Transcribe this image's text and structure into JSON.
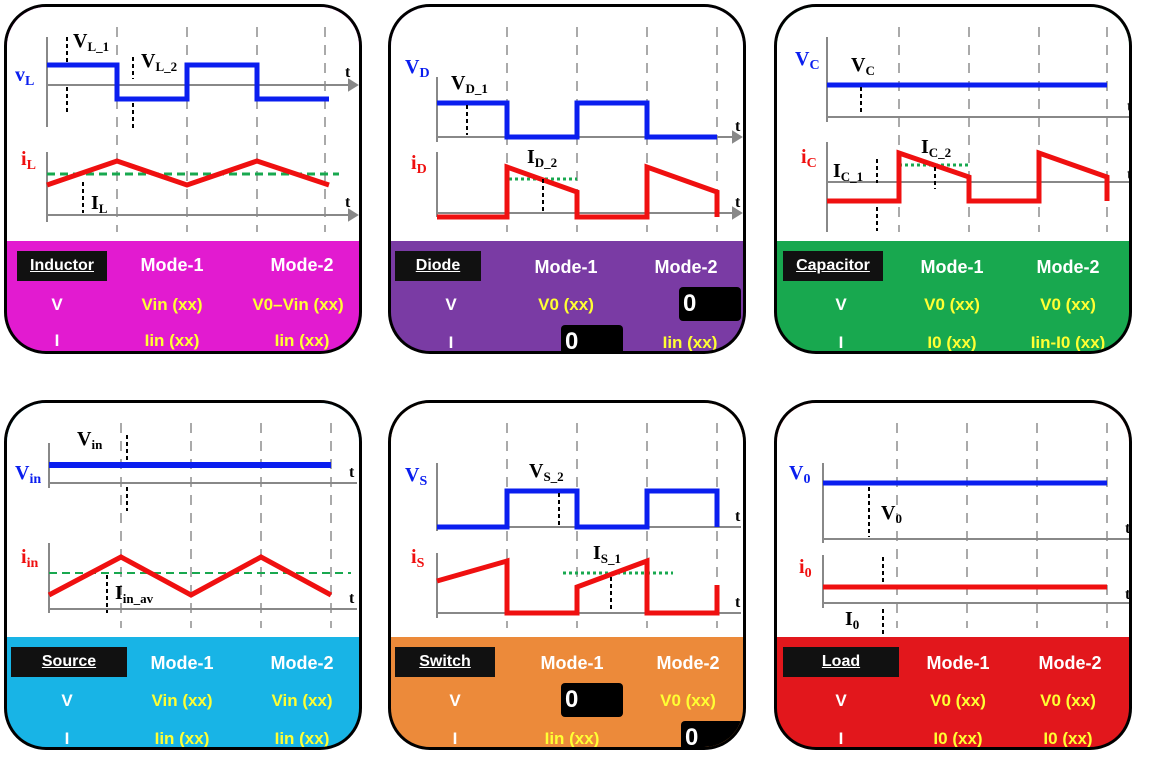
{
  "colors": {
    "inductor": "#e21bd0",
    "diode": "#7a3ba4",
    "capacitor": "#18a84f",
    "source": "#18b4e6",
    "switch": "#ec8a3a",
    "load": "#e2171c",
    "voltage_trace": "#0a1eef",
    "current_trace": "#ef1010",
    "average_line": "#18a84f"
  },
  "cards": [
    {
      "id": "inductor",
      "name": "Inductor",
      "mode1": "Mode-1",
      "mode2": "Mode-2",
      "rows": [
        {
          "label": "V",
          "mode1": "Vin (xx)",
          "mode2": "V0–Vin (xx)"
        },
        {
          "label": "I",
          "mode1": "Iin (xx)",
          "mode2": "Iin (xx)"
        }
      ],
      "plot": {
        "v_axis": "vL",
        "i_axis": "iL",
        "t": "t",
        "v_labels": [
          "VL_1",
          "VL_2"
        ],
        "i_labels": [
          "IL"
        ]
      }
    },
    {
      "id": "diode",
      "name": "Diode",
      "mode1": "Mode-1",
      "mode2": "Mode-2",
      "rows": [
        {
          "label": "V",
          "mode1": "V0 (xx)",
          "mode2": "0"
        },
        {
          "label": "I",
          "mode1": "0",
          "mode2": "Iin (xx)"
        }
      ],
      "plot": {
        "v_axis": "vD",
        "i_axis": "iD",
        "t": "t",
        "v_labels": [
          "VD_1"
        ],
        "i_labels": [
          "ID_2"
        ]
      }
    },
    {
      "id": "capacitor",
      "name": "Capacitor",
      "mode1": "Mode-1",
      "mode2": "Mode-2",
      "rows": [
        {
          "label": "V",
          "mode1": "V0 (xx)",
          "mode2": "V0 (xx)"
        },
        {
          "label": "I",
          "mode1": "I0 (xx)",
          "mode2": "Iin-I0 (xx)"
        }
      ],
      "plot": {
        "v_axis": "vC",
        "i_axis": "iC",
        "t": "t",
        "v_labels": [
          "VC"
        ],
        "i_labels": [
          "IC_1",
          "IC_2"
        ]
      }
    },
    {
      "id": "source",
      "name": "Source",
      "mode1": "Mode-1",
      "mode2": "Mode-2",
      "rows": [
        {
          "label": "V",
          "mode1": "Vin (xx)",
          "mode2": "Vin (xx)"
        },
        {
          "label": "I",
          "mode1": "Iin (xx)",
          "mode2": "Iin (xx)"
        }
      ],
      "plot": {
        "v_axis": "vin",
        "i_axis": "iin",
        "t": "t",
        "v_labels": [
          "Vin"
        ],
        "i_labels": [
          "Iin_av"
        ]
      }
    },
    {
      "id": "switch",
      "name": "Switch",
      "mode1": "Mode-1",
      "mode2": "Mode-2",
      "rows": [
        {
          "label": "V",
          "mode1": "0",
          "mode2": "V0 (xx)"
        },
        {
          "label": "I",
          "mode1": "Iin (xx)",
          "mode2": "0"
        }
      ],
      "plot": {
        "v_axis": "vS",
        "i_axis": "iS",
        "t": "t",
        "v_labels": [
          "VS_2"
        ],
        "i_labels": [
          "IS_1"
        ]
      }
    },
    {
      "id": "load",
      "name": "Load",
      "mode1": "Mode-1",
      "mode2": "Mode-2",
      "rows": [
        {
          "label": "V",
          "mode1": "V0 (xx)",
          "mode2": "V0 (xx)"
        },
        {
          "label": "I",
          "mode1": "I0 (xx)",
          "mode2": "I0 (xx)"
        }
      ],
      "plot": {
        "v_axis": "v0",
        "i_axis": "i0",
        "t": "t",
        "v_labels": [
          "V0"
        ],
        "i_labels": [
          "I0"
        ]
      }
    }
  ]
}
